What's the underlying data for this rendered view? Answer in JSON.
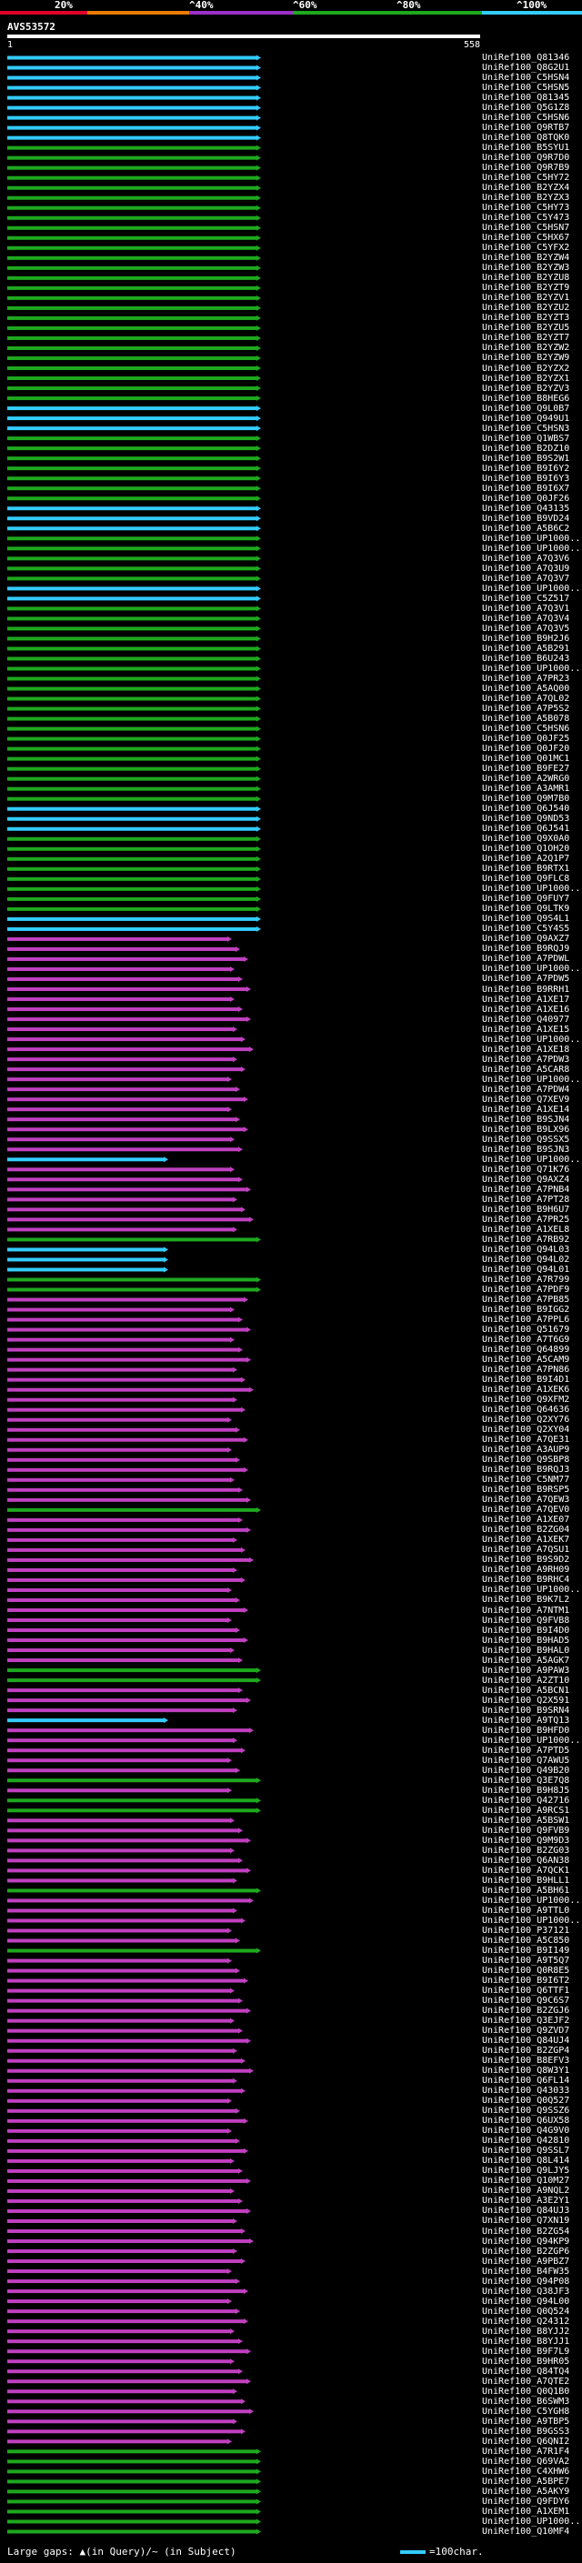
{
  "legend": {
    "bands": [
      {
        "color": "#e0002a"
      },
      {
        "color": "#e87b00"
      },
      {
        "color": "#9b30c8"
      },
      {
        "color": "#1ea81e"
      },
      {
        "color": "#33ccff"
      }
    ],
    "ticks": [
      "20%",
      "^40%",
      "^60%",
      "^80%",
      "^100%"
    ]
  },
  "query": {
    "id": "AVS53572",
    "start": "1",
    "end": "558"
  },
  "colors": {
    "cyan": "#33ccff",
    "green": "#1ea81e",
    "magenta": "#c040c0",
    "line": "#cccccc"
  },
  "hits": [
    {
      "id": "UniRef100_Q81346",
      "c": "cyan"
    },
    {
      "id": "UniRef100_Q8G2U1",
      "c": "cyan"
    },
    {
      "id": "UniRef100_C5HSN4",
      "c": "cyan"
    },
    {
      "id": "UniRef100_C5HSN5",
      "c": "cyan"
    },
    {
      "id": "UniRef100_Q81345",
      "c": "cyan"
    },
    {
      "id": "UniRef100_Q5G1Z8",
      "c": "cyan"
    },
    {
      "id": "UniRef100_C5HSN6",
      "c": "cyan"
    },
    {
      "id": "UniRef100_Q9RTB7",
      "c": "cyan"
    },
    {
      "id": "UniRef100_Q8TQK0",
      "c": "cyan"
    },
    {
      "id": "UniRef100_B5SYU1",
      "c": "green"
    },
    {
      "id": "UniRef100_Q9R7D0",
      "c": "green"
    },
    {
      "id": "UniRef100_Q9R7B9",
      "c": "green"
    },
    {
      "id": "UniRef100_C5HY72",
      "c": "green"
    },
    {
      "id": "UniRef100_B2YZX4",
      "c": "green"
    },
    {
      "id": "UniRef100_B2YZX3",
      "c": "green"
    },
    {
      "id": "UniRef100_C5HY73",
      "c": "green"
    },
    {
      "id": "UniRef100_C5Y473",
      "c": "green"
    },
    {
      "id": "UniRef100_C5HSN7",
      "c": "green"
    },
    {
      "id": "UniRef100_C5HX67",
      "c": "green"
    },
    {
      "id": "UniRef100_C5YFX2",
      "c": "green"
    },
    {
      "id": "UniRef100_B2YZW4",
      "c": "green"
    },
    {
      "id": "UniRef100_B2YZW3",
      "c": "green"
    },
    {
      "id": "UniRef100_B2YZU8",
      "c": "green"
    },
    {
      "id": "UniRef100_B2YZT9",
      "c": "green"
    },
    {
      "id": "UniRef100_B2YZV1",
      "c": "green"
    },
    {
      "id": "UniRef100_B2YZU2",
      "c": "green"
    },
    {
      "id": "UniRef100_B2YZT3",
      "c": "green"
    },
    {
      "id": "UniRef100_B2YZU5",
      "c": "green"
    },
    {
      "id": "UniRef100_B2YZT7",
      "c": "green"
    },
    {
      "id": "UniRef100_B2YZW2",
      "c": "green"
    },
    {
      "id": "UniRef100_B2YZW9",
      "c": "green"
    },
    {
      "id": "UniRef100_B2YZX2",
      "c": "green"
    },
    {
      "id": "UniRef100_B2YZX1",
      "c": "green"
    },
    {
      "id": "UniRef100_B2YZV3",
      "c": "green"
    },
    {
      "id": "UniRef100_B8HEG6",
      "c": "green"
    },
    {
      "id": "UniRef100_Q9L0B7",
      "c": "cyan"
    },
    {
      "id": "UniRef100_Q949U1",
      "c": "cyan"
    },
    {
      "id": "UniRef100_C5HSN3",
      "c": "cyan"
    },
    {
      "id": "UniRef100_Q1WBS7",
      "c": "green"
    },
    {
      "id": "UniRef100_B2DZ10",
      "c": "green"
    },
    {
      "id": "UniRef100_B9S2W1",
      "c": "green"
    },
    {
      "id": "UniRef100_B9I6Y2",
      "c": "green"
    },
    {
      "id": "UniRef100_B9I6Y3",
      "c": "green"
    },
    {
      "id": "UniRef100_B9I6X7",
      "c": "green"
    },
    {
      "id": "UniRef100_Q0JF26",
      "c": "green"
    },
    {
      "id": "UniRef100_Q43135",
      "c": "cyan"
    },
    {
      "id": "UniRef100_B9VD24",
      "c": "cyan"
    },
    {
      "id": "UniRef100_A5B6C2",
      "c": "cyan"
    },
    {
      "id": "UniRef100_UP1000...",
      "c": "green"
    },
    {
      "id": "UniRef100_UP1000...",
      "c": "green"
    },
    {
      "id": "UniRef100_A7Q3V6",
      "c": "green"
    },
    {
      "id": "UniRef100_A7Q3U9",
      "c": "green"
    },
    {
      "id": "UniRef100_A7Q3V7",
      "c": "green"
    },
    {
      "id": "UniRef100_UP1000...",
      "c": "cyan"
    },
    {
      "id": "UniRef100_C5Z517",
      "c": "cyan"
    },
    {
      "id": "UniRef100_A7Q3V1",
      "c": "green"
    },
    {
      "id": "UniRef100_A7Q3V4",
      "c": "green"
    },
    {
      "id": "UniRef100_A7Q3V5",
      "c": "green"
    },
    {
      "id": "UniRef100_B9H2J6",
      "c": "green"
    },
    {
      "id": "UniRef100_A5B291",
      "c": "green"
    },
    {
      "id": "UniRef100_B6U243",
      "c": "green"
    },
    {
      "id": "UniRef100_UP1000...",
      "c": "green"
    },
    {
      "id": "UniRef100_A7PR23",
      "c": "green"
    },
    {
      "id": "UniRef100_A5AQ00",
      "c": "green"
    },
    {
      "id": "UniRef100_A7QL02",
      "c": "green"
    },
    {
      "id": "UniRef100_A7P5S2",
      "c": "green"
    },
    {
      "id": "UniRef100_A5B078",
      "c": "green"
    },
    {
      "id": "UniRef100_C5HSN6",
      "c": "green"
    },
    {
      "id": "UniRef100_Q0JF25",
      "c": "green"
    },
    {
      "id": "UniRef100_Q0JF20",
      "c": "green"
    },
    {
      "id": "UniRef100_Q01MC1",
      "c": "green"
    },
    {
      "id": "UniRef100_B9FE27",
      "c": "green"
    },
    {
      "id": "UniRef100_A2WRG0",
      "c": "green"
    },
    {
      "id": "UniRef100_A3AMR1",
      "c": "green"
    },
    {
      "id": "UniRef100_Q9M7B0",
      "c": "green"
    },
    {
      "id": "UniRef100_Q6J540",
      "c": "cyan"
    },
    {
      "id": "UniRef100_Q9ND53",
      "c": "cyan"
    },
    {
      "id": "UniRef100_Q6J541",
      "c": "cyan"
    },
    {
      "id": "UniRef100_Q9X0A0",
      "c": "green"
    },
    {
      "id": "UniRef100_Q1OH20",
      "c": "green"
    },
    {
      "id": "UniRef100_A2Q1P7",
      "c": "green"
    },
    {
      "id": "UniRef100_B9RTX1",
      "c": "green"
    },
    {
      "id": "UniRef100_Q9FLC8",
      "c": "green"
    },
    {
      "id": "UniRef100_UP1000...",
      "c": "green"
    },
    {
      "id": "UniRef100_Q9FUY7",
      "c": "green"
    },
    {
      "id": "UniRef100_Q9LTK9",
      "c": "green"
    },
    {
      "id": "UniRef100_Q9S4L1",
      "c": "cyan"
    },
    {
      "id": "UniRef100_C5Y4S5",
      "c": "cyan"
    },
    {
      "id": "UniRef100_Q9AXZ7",
      "c": "magenta"
    },
    {
      "id": "UniRef100_B9RQJ9",
      "c": "magenta"
    },
    {
      "id": "UniRef100_A7PDWL",
      "c": "magenta"
    },
    {
      "id": "UniRef100_UP1000...",
      "c": "magenta"
    },
    {
      "id": "UniRef100_A7PDW5",
      "c": "magenta"
    },
    {
      "id": "UniRef100_B9RRH1",
      "c": "magenta"
    },
    {
      "id": "UniRef100_A1XE17",
      "c": "magenta"
    },
    {
      "id": "UniRef100_A1XE16",
      "c": "magenta"
    },
    {
      "id": "UniRef100_Q40977",
      "c": "magenta"
    },
    {
      "id": "UniRef100_A1XE15",
      "c": "magenta"
    },
    {
      "id": "UniRef100_UP1000...",
      "c": "magenta"
    },
    {
      "id": "UniRef100_A1XE18",
      "c": "magenta"
    },
    {
      "id": "UniRef100_A7PDW3",
      "c": "magenta"
    },
    {
      "id": "UniRef100_A5CAR8",
      "c": "magenta"
    },
    {
      "id": "UniRef100_UP1000...",
      "c": "magenta"
    },
    {
      "id": "UniRef100_A7PDW4",
      "c": "magenta"
    },
    {
      "id": "UniRef100_Q7XEV9",
      "c": "magenta"
    },
    {
      "id": "UniRef100_A1XE14",
      "c": "magenta"
    },
    {
      "id": "UniRef100_B9SJN4",
      "c": "magenta"
    },
    {
      "id": "UniRef100_B9LX96",
      "c": "magenta"
    },
    {
      "id": "UniRef100_Q9SSX5",
      "c": "magenta"
    },
    {
      "id": "UniRef100_B9SJN3",
      "c": "magenta"
    },
    {
      "id": "UniRef100_UP1000...",
      "c": "cyan"
    },
    {
      "id": "UniRef100_Q71K76",
      "c": "magenta"
    },
    {
      "id": "UniRef100_Q9AXZ4",
      "c": "magenta"
    },
    {
      "id": "UniRef100_A7PNB4",
      "c": "magenta"
    },
    {
      "id": "UniRef100_A7PT28",
      "c": "magenta"
    },
    {
      "id": "UniRef100_B9H6U7",
      "c": "magenta"
    },
    {
      "id": "UniRef100_A7PR25",
      "c": "magenta"
    },
    {
      "id": "UniRef100_A1XEL8",
      "c": "magenta"
    },
    {
      "id": "UniRef100_A7RB92",
      "c": "green"
    },
    {
      "id": "UniRef100_Q94L03",
      "c": "cyan"
    },
    {
      "id": "UniRef100_Q94L02",
      "c": "cyan"
    },
    {
      "id": "UniRef100_Q94L01",
      "c": "cyan"
    },
    {
      "id": "UniRef100_A7R799",
      "c": "green"
    },
    {
      "id": "UniRef100_A7PDF9",
      "c": "green"
    },
    {
      "id": "UniRef100_A7PB85",
      "c": "magenta"
    },
    {
      "id": "UniRef100_B9IGG2",
      "c": "magenta"
    },
    {
      "id": "UniRef100_A7PPL6",
      "c": "magenta"
    },
    {
      "id": "UniRef100_Q51679",
      "c": "magenta"
    },
    {
      "id": "UniRef100_A7T6G9",
      "c": "magenta"
    },
    {
      "id": "UniRef100_Q64899",
      "c": "magenta"
    },
    {
      "id": "UniRef100_A5CAM9",
      "c": "magenta"
    },
    {
      "id": "UniRef100_A7PN86",
      "c": "magenta"
    },
    {
      "id": "UniRef100_B9I4D1",
      "c": "magenta"
    },
    {
      "id": "UniRef100_A1XEK6",
      "c": "magenta"
    },
    {
      "id": "UniRef100_Q9XFM2",
      "c": "magenta"
    },
    {
      "id": "UniRef100_Q64636",
      "c": "magenta"
    },
    {
      "id": "UniRef100_Q2XY76",
      "c": "magenta"
    },
    {
      "id": "UniRef100_Q2XY04",
      "c": "magenta"
    },
    {
      "id": "UniRef100_A7QE31",
      "c": "magenta"
    },
    {
      "id": "UniRef100_A3AUP9",
      "c": "magenta"
    },
    {
      "id": "UniRef100_Q9SBP8",
      "c": "magenta"
    },
    {
      "id": "UniRef100_B9RQJ3",
      "c": "magenta"
    },
    {
      "id": "UniRef100_C5NM77",
      "c": "magenta"
    },
    {
      "id": "UniRef100_B9RSP5",
      "c": "magenta"
    },
    {
      "id": "UniRef100_A7QEW3",
      "c": "magenta"
    },
    {
      "id": "UniRef100_A7QEV0",
      "c": "green"
    },
    {
      "id": "UniRef100_A1XE07",
      "c": "magenta"
    },
    {
      "id": "UniRef100_B2ZG04",
      "c": "magenta"
    },
    {
      "id": "UniRef100_A1XEK7",
      "c": "magenta"
    },
    {
      "id": "UniRef100_A7QSU1",
      "c": "magenta"
    },
    {
      "id": "UniRef100_B9S9D2",
      "c": "magenta"
    },
    {
      "id": "UniRef100_A9RH09",
      "c": "magenta"
    },
    {
      "id": "UniRef100_B9RHC4",
      "c": "magenta"
    },
    {
      "id": "UniRef100_UP1000...",
      "c": "magenta"
    },
    {
      "id": "UniRef100_B9K7L2",
      "c": "magenta"
    },
    {
      "id": "UniRef100_A7NTM1",
      "c": "magenta"
    },
    {
      "id": "UniRef100_Q9FVB8",
      "c": "magenta"
    },
    {
      "id": "UniRef100_B9I4D0",
      "c": "magenta"
    },
    {
      "id": "UniRef100_B9HAD5",
      "c": "magenta"
    },
    {
      "id": "UniRef100_B9HAL0",
      "c": "magenta"
    },
    {
      "id": "UniRef100_A5AGK7",
      "c": "magenta"
    },
    {
      "id": "UniRef100_A9PAW3",
      "c": "green"
    },
    {
      "id": "UniRef100_A2ZT10",
      "c": "green"
    },
    {
      "id": "UniRef100_A5BCN1",
      "c": "magenta"
    },
    {
      "id": "UniRef100_Q2X591",
      "c": "magenta"
    },
    {
      "id": "UniRef100_B9SRN4",
      "c": "magenta"
    },
    {
      "id": "UniRef100_A9TQ13",
      "c": "cyan"
    },
    {
      "id": "UniRef100_B9HFD0",
      "c": "magenta"
    },
    {
      "id": "UniRef100_UP1000...",
      "c": "magenta"
    },
    {
      "id": "UniRef100_A7PTD5",
      "c": "magenta"
    },
    {
      "id": "UniRef100_Q7AWU5",
      "c": "magenta"
    },
    {
      "id": "UniRef100_Q49B20",
      "c": "magenta"
    },
    {
      "id": "UniRef100_Q3E7Q8",
      "c": "green"
    },
    {
      "id": "UniRef100_B9H8J5",
      "c": "magenta"
    },
    {
      "id": "UniRef100_Q42716",
      "c": "green"
    },
    {
      "id": "UniRef100_A9RCS1",
      "c": "green"
    },
    {
      "id": "UniRef100_A5BSW1",
      "c": "magenta"
    },
    {
      "id": "UniRef100_Q9FVB9",
      "c": "magenta"
    },
    {
      "id": "UniRef100_Q9M9D3",
      "c": "magenta"
    },
    {
      "id": "UniRef100_B2ZG03",
      "c": "magenta"
    },
    {
      "id": "UniRef100_Q6AN38",
      "c": "magenta"
    },
    {
      "id": "UniRef100_A7QCK1",
      "c": "magenta"
    },
    {
      "id": "UniRef100_B9HLL1",
      "c": "magenta"
    },
    {
      "id": "UniRef100_A5BH61",
      "c": "green"
    },
    {
      "id": "UniRef100_UP1000...",
      "c": "magenta"
    },
    {
      "id": "UniRef100_A9TTL0",
      "c": "magenta"
    },
    {
      "id": "UniRef100_UP1000...",
      "c": "magenta"
    },
    {
      "id": "UniRef100_P37121",
      "c": "magenta"
    },
    {
      "id": "UniRef100_A5C850",
      "c": "magenta"
    },
    {
      "id": "UniRef100_B9I149",
      "c": "green"
    },
    {
      "id": "UniRef100_A9T5Q7",
      "c": "magenta"
    },
    {
      "id": "UniRef100_Q0R8E5",
      "c": "magenta"
    },
    {
      "id": "UniRef100_B9I6T2",
      "c": "magenta"
    },
    {
      "id": "UniRef100_Q6TTF1",
      "c": "magenta"
    },
    {
      "id": "UniRef100_Q9C6S7",
      "c": "magenta"
    },
    {
      "id": "UniRef100_B2ZGJ6",
      "c": "magenta"
    },
    {
      "id": "UniRef100_Q3EJF2",
      "c": "magenta"
    },
    {
      "id": "UniRef100_Q9ZVD7",
      "c": "magenta"
    },
    {
      "id": "UniRef100_Q84UJ4",
      "c": "magenta"
    },
    {
      "id": "UniRef100_B2ZGP4",
      "c": "magenta"
    },
    {
      "id": "UniRef100_B8EFV3",
      "c": "magenta"
    },
    {
      "id": "UniRef100_Q8W3Y1",
      "c": "magenta"
    },
    {
      "id": "UniRef100_Q6FL14",
      "c": "magenta"
    },
    {
      "id": "UniRef100_Q43033",
      "c": "magenta"
    },
    {
      "id": "UniRef100_Q0Q527",
      "c": "magenta"
    },
    {
      "id": "UniRef100_Q9SSZ6",
      "c": "magenta"
    },
    {
      "id": "UniRef100_Q6UX58",
      "c": "magenta"
    },
    {
      "id": "UniRef100_Q4G9V0",
      "c": "magenta"
    },
    {
      "id": "UniRef100_Q42810",
      "c": "magenta"
    },
    {
      "id": "UniRef100_Q9SSL7",
      "c": "magenta"
    },
    {
      "id": "UniRef100_Q8L414",
      "c": "magenta"
    },
    {
      "id": "UniRef100_Q9LJY5",
      "c": "magenta"
    },
    {
      "id": "UniRef100_Q10M27",
      "c": "magenta"
    },
    {
      "id": "UniRef100_A9NQL2",
      "c": "magenta"
    },
    {
      "id": "UniRef100_A3E2Y1",
      "c": "magenta"
    },
    {
      "id": "UniRef100_Q84UJ3",
      "c": "magenta"
    },
    {
      "id": "UniRef100_Q7XN19",
      "c": "magenta"
    },
    {
      "id": "UniRef100_B2ZG54",
      "c": "magenta"
    },
    {
      "id": "UniRef100_Q94KP9",
      "c": "magenta"
    },
    {
      "id": "UniRef100_B2ZGP6",
      "c": "magenta"
    },
    {
      "id": "UniRef100_A9PBZ7",
      "c": "magenta"
    },
    {
      "id": "UniRef100_B4FW35",
      "c": "magenta"
    },
    {
      "id": "UniRef100_Q94P08",
      "c": "magenta"
    },
    {
      "id": "UniRef100_Q38JF3",
      "c": "magenta"
    },
    {
      "id": "UniRef100_Q94L00",
      "c": "magenta"
    },
    {
      "id": "UniRef100_Q0Q524",
      "c": "magenta"
    },
    {
      "id": "UniRef100_Q24312",
      "c": "magenta"
    },
    {
      "id": "UniRef100_B8YJJ2",
      "c": "magenta"
    },
    {
      "id": "UniRef100_B8YJJ1",
      "c": "magenta"
    },
    {
      "id": "UniRef100_B9F7L9",
      "c": "magenta"
    },
    {
      "id": "UniRef100_B9HR05",
      "c": "magenta"
    },
    {
      "id": "UniRef100_Q84TQ4",
      "c": "magenta"
    },
    {
      "id": "UniRef100_A7QTE2",
      "c": "magenta"
    },
    {
      "id": "UniRef100_Q0Q1B0",
      "c": "magenta"
    },
    {
      "id": "UniRef100_B6SWM3",
      "c": "magenta"
    },
    {
      "id": "UniRef100_C5YGH8",
      "c": "magenta"
    },
    {
      "id": "UniRef100_A9TBP5",
      "c": "magenta"
    },
    {
      "id": "UniRef100_B9GSS3",
      "c": "magenta"
    },
    {
      "id": "UniRef100_Q6QNI2",
      "c": "magenta"
    },
    {
      "id": "UniRef100_A7R1F4",
      "c": "green"
    },
    {
      "id": "UniRef100_Q69VA2",
      "c": "green"
    },
    {
      "id": "UniRef100_C4XHW6",
      "c": "green"
    },
    {
      "id": "UniRef100_A5BPE7",
      "c": "green"
    },
    {
      "id": "UniRef100_A5AKY9",
      "c": "green"
    },
    {
      "id": "UniRef100_Q9FDY6",
      "c": "green"
    },
    {
      "id": "UniRef100_A1XEM1",
      "c": "green"
    },
    {
      "id": "UniRef100_UP1000...",
      "c": "green"
    },
    {
      "id": "UniRef100_Q10MF4",
      "c": "green"
    }
  ],
  "footer": {
    "large_gaps": "Large gaps: ▲(in Query)/~ (in Subject)",
    "scale": "=100char."
  }
}
